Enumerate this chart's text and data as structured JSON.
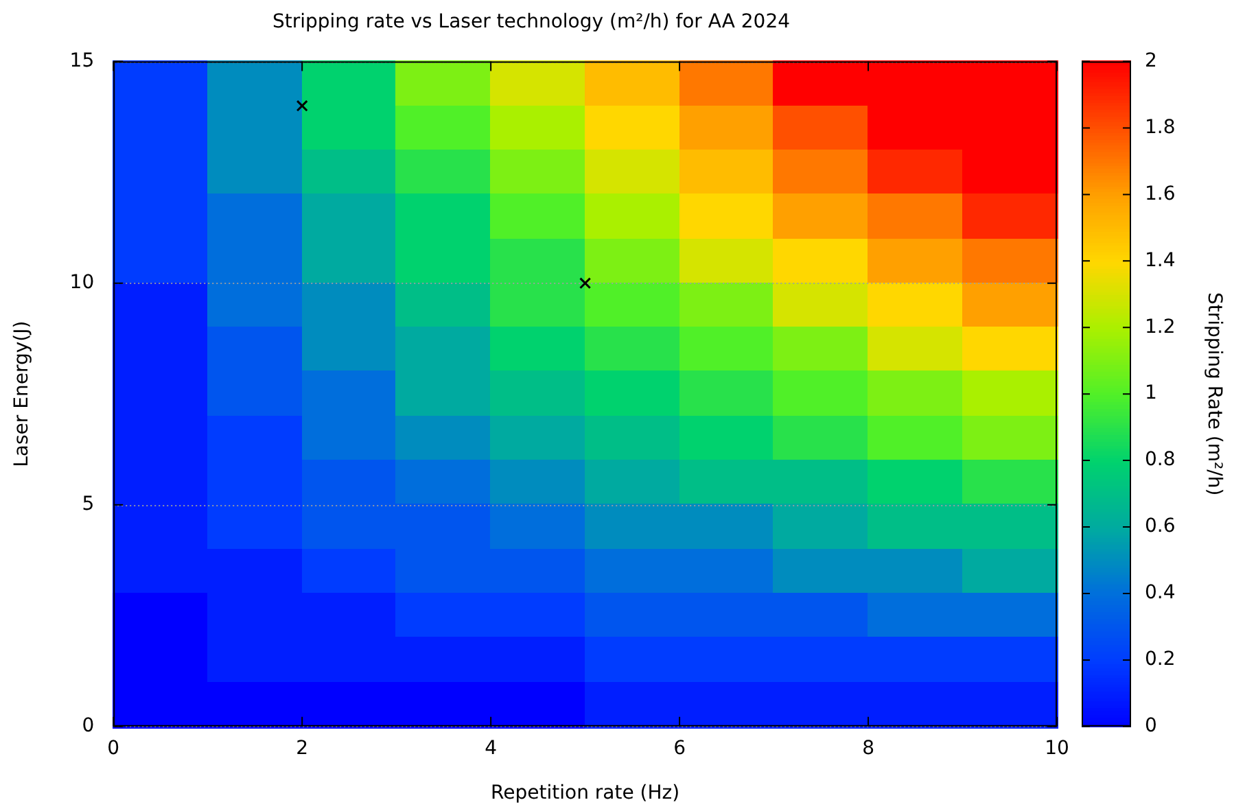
{
  "chart_data": {
    "type": "heatmap",
    "title": "Stripping rate vs Laser technology (m²/h) for AA 2024",
    "xlabel": "Repetition rate (Hz)",
    "ylabel": "Laser Energy(J)",
    "clabel": "Stripping Rate (m²/h)",
    "x": [
      0.5,
      1.5,
      2.5,
      3.5,
      4.5,
      5.5,
      6.5,
      7.5,
      8.5,
      9.5
    ],
    "xlim": [
      0,
      10
    ],
    "xticks": [
      0,
      2,
      4,
      6,
      8,
      10
    ],
    "ylim": [
      0,
      15
    ],
    "yticks": [
      0,
      5,
      10,
      15
    ],
    "clim": [
      0,
      2
    ],
    "cticks": [
      0,
      0.2,
      0.4,
      0.6,
      0.8,
      1,
      1.2,
      1.4,
      1.6,
      1.8,
      2
    ],
    "grid": "y",
    "cells": [
      [
        0.2,
        0.5,
        0.8,
        1.1,
        1.3,
        1.5,
        1.7,
        2,
        2,
        2
      ],
      [
        0.2,
        0.5,
        0.8,
        1,
        1.2,
        1.4,
        1.6,
        1.8,
        2,
        2
      ],
      [
        0.2,
        0.5,
        0.7,
        0.9,
        1.1,
        1.3,
        1.5,
        1.7,
        1.9,
        2
      ],
      [
        0.2,
        0.4,
        0.6,
        0.8,
        1,
        1.2,
        1.4,
        1.6,
        1.7,
        1.9
      ],
      [
        0.2,
        0.4,
        0.6,
        0.8,
        0.9,
        1.1,
        1.3,
        1.4,
        1.6,
        1.7
      ],
      [
        0.1,
        0.4,
        0.5,
        0.7,
        0.9,
        1,
        1.1,
        1.3,
        1.4,
        1.6
      ],
      [
        0.1,
        0.3,
        0.5,
        0.6,
        0.8,
        0.9,
        1,
        1.1,
        1.3,
        1.4
      ],
      [
        0.1,
        0.3,
        0.4,
        0.6,
        0.7,
        0.8,
        0.9,
        1,
        1.1,
        1.2
      ],
      [
        0.1,
        0.2,
        0.4,
        0.5,
        0.6,
        0.7,
        0.8,
        0.9,
        1,
        1.1
      ],
      [
        0.1,
        0.2,
        0.3,
        0.4,
        0.5,
        0.6,
        0.7,
        0.7,
        0.8,
        0.9
      ],
      [
        0.1,
        0.2,
        0.3,
        0.3,
        0.4,
        0.5,
        0.5,
        0.6,
        0.7,
        0.7
      ],
      [
        0.1,
        0.1,
        0.2,
        0.3,
        0.3,
        0.4,
        0.4,
        0.5,
        0.5,
        0.6
      ],
      [
        0,
        0.1,
        0.1,
        0.2,
        0.2,
        0.3,
        0.3,
        0.3,
        0.4,
        0.4
      ],
      [
        0,
        0.1,
        0.1,
        0.1,
        0.1,
        0.2,
        0.2,
        0.2,
        0.2,
        0.2
      ],
      [
        0,
        0,
        0,
        0,
        0,
        0.1,
        0.1,
        0.1,
        0.1,
        0.1
      ]
    ],
    "series": [
      {
        "type": "scatter",
        "x": [
          2,
          5
        ],
        "values": [
          14,
          10
        ],
        "color": "#000000",
        "marker": "cross"
      }
    ]
  }
}
